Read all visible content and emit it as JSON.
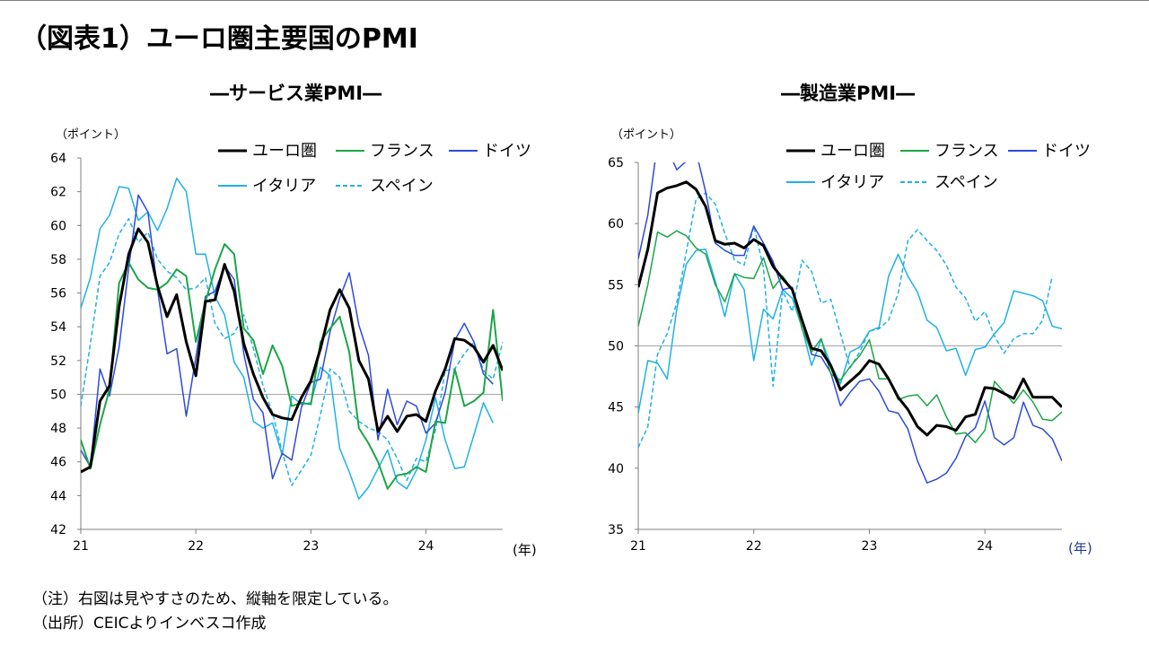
{
  "page_title": "（図表1）ユーロ圏主要国のPMI",
  "footnotes": [
    "（注）右図は見やすさのため、縦軸を限定している。",
    "（出所）CEICよりインベスコ作成"
  ],
  "colors": {
    "euro": "#000000",
    "france": "#1ca547",
    "germany": "#2d4ad9",
    "italy": "#1fb1e6",
    "spain": "#1fb1e6",
    "ref": "#a6a6a6",
    "axis": "#7f7f7f"
  },
  "chart_data": [
    {
      "type": "line",
      "title": "―サービス業PMI―",
      "ylabel": "（ポイント）",
      "xunit": "(年)",
      "ylim": [
        42,
        64
      ],
      "yticks": [
        "42",
        "44",
        "46",
        "48",
        "50",
        "52",
        "54",
        "56",
        "58",
        "60",
        "62",
        "64"
      ],
      "xtick_labels": [
        "21",
        "22",
        "23",
        "24"
      ],
      "xlim": [
        0,
        44
      ],
      "ref_line": 50,
      "grid": false,
      "legend_position": "top-right",
      "series": [
        {
          "key": "euro",
          "name": "ユーロ圏",
          "style": "solid",
          "width": 3,
          "values": [
            45.4,
            45.7,
            49.6,
            50.5,
            55.2,
            58.3,
            59.8,
            59.0,
            56.4,
            54.6,
            55.9,
            53.1,
            51.1,
            55.5,
            55.6,
            57.7,
            56.1,
            53.0,
            51.2,
            49.8,
            48.8,
            48.6,
            48.5,
            49.8,
            50.8,
            52.7,
            55.0,
            56.2,
            55.1,
            52.0,
            50.9,
            47.8,
            48.7,
            47.8,
            48.7,
            48.8,
            48.4,
            50.2,
            51.5,
            53.3,
            53.2,
            52.8,
            51.9,
            52.9,
            51.4
          ]
        },
        {
          "key": "france",
          "name": "フランス",
          "style": "solid",
          "width": 2,
          "values": [
            47.3,
            45.6,
            48.2,
            50.3,
            56.6,
            57.8,
            56.8,
            56.3,
            56.2,
            56.6,
            57.4,
            57.0,
            53.1,
            55.5,
            57.4,
            58.9,
            58.3,
            53.9,
            53.2,
            51.2,
            52.9,
            51.7,
            49.3,
            49.5,
            49.4,
            53.1,
            53.9,
            54.6,
            52.5,
            48.0,
            47.1,
            46.0,
            44.4,
            45.2,
            45.3,
            45.7,
            45.4,
            48.4,
            48.3,
            51.5,
            49.3,
            49.6,
            50.1,
            55.0,
            49.6
          ]
        },
        {
          "key": "germany",
          "name": "ドイツ",
          "style": "solid",
          "width": 1.5,
          "values": [
            46.7,
            45.7,
            51.5,
            49.9,
            52.8,
            57.5,
            61.8,
            60.8,
            56.2,
            52.4,
            52.7,
            48.7,
            52.2,
            55.8,
            56.1,
            57.6,
            56.8,
            52.4,
            49.7,
            48.9,
            45.0,
            46.5,
            46.1,
            49.2,
            50.7,
            50.9,
            53.7,
            55.7,
            57.2,
            54.1,
            52.3,
            47.3,
            50.3,
            48.2,
            49.6,
            49.3,
            47.7,
            48.3,
            50.1,
            53.2,
            54.2,
            53.1,
            51.2,
            50.6
          ]
        },
        {
          "key": "italy",
          "name": "イタリア",
          "style": "solid",
          "width": 1.5,
          "values": [
            55.1,
            56.9,
            59.8,
            60.6,
            62.3,
            62.2,
            60.3,
            60.8,
            59.7,
            61.0,
            62.8,
            62.0,
            58.3,
            58.3,
            55.8,
            54.7,
            51.9,
            51.0,
            48.4,
            48.0,
            48.3,
            46.4,
            49.9,
            49.4,
            49.5,
            51.6,
            51.1,
            46.8,
            45.4,
            43.8,
            44.5,
            45.6,
            46.7,
            44.8,
            44.4,
            45.5,
            47.3,
            49.8,
            47.3,
            45.6,
            45.7,
            47.6,
            49.5,
            48.3
          ]
        },
        {
          "key": "spain",
          "name": "スペイン",
          "style": "dashed",
          "width": 1.5,
          "values": [
            49.3,
            53.0,
            57.0,
            57.8,
            59.5,
            60.4,
            59.0,
            59.6,
            58.0,
            57.3,
            56.9,
            56.2,
            56.3,
            56.9,
            54.2,
            53.3,
            53.6,
            54.7,
            52.7,
            50.5,
            48.9,
            46.6,
            44.6,
            45.5,
            46.4,
            48.8,
            51.5,
            51.0,
            49.0,
            48.4,
            48.0,
            47.8,
            47.3,
            46.2,
            44.9,
            46.2,
            46.0,
            47.9,
            51.4,
            51.5,
            52.4,
            53.1,
            51.4,
            50.9,
            53.1
          ]
        }
      ]
    },
    {
      "type": "line",
      "title": "―製造業PMI―",
      "ylabel": "（ポイント）",
      "xunit": "(年)",
      "ylim": [
        35,
        65
      ],
      "yticks": [
        "35",
        "40",
        "45",
        "50",
        "55",
        "60",
        "65"
      ],
      "xtick_labels": [
        "21",
        "22",
        "23",
        "24"
      ],
      "xlim": [
        0,
        44
      ],
      "ref_line": 50,
      "grid": false,
      "legend_position": "top-right",
      "series": [
        {
          "key": "euro",
          "name": "ユーロ圏",
          "style": "solid",
          "width": 3,
          "values": [
            54.8,
            57.9,
            62.5,
            62.9,
            63.1,
            63.4,
            62.8,
            61.4,
            58.6,
            58.3,
            58.4,
            58.0,
            58.7,
            58.2,
            56.5,
            55.5,
            54.6,
            52.1,
            49.8,
            49.6,
            48.4,
            46.4,
            47.1,
            47.8,
            48.8,
            48.5,
            47.3,
            45.8,
            44.8,
            43.4,
            42.7,
            43.5,
            43.4,
            43.1,
            44.2,
            44.4,
            46.6,
            46.5,
            46.1,
            45.7,
            47.3,
            45.8,
            45.8,
            45.8,
            45.0
          ]
        },
        {
          "key": "france",
          "name": "フランス",
          "style": "solid",
          "width": 1.5,
          "values": [
            51.6,
            55.0,
            59.3,
            58.9,
            59.4,
            59.0,
            58.0,
            57.5,
            55.0,
            53.6,
            55.9,
            55.6,
            55.5,
            57.2,
            54.7,
            55.7,
            54.6,
            51.4,
            49.5,
            50.6,
            47.7,
            47.2,
            48.3,
            49.2,
            50.5,
            47.3,
            47.3,
            45.6,
            45.9,
            46.0,
            45.1,
            46.0,
            44.2,
            42.8,
            42.9,
            42.1,
            43.1,
            47.1,
            46.2,
            45.3,
            46.4,
            45.4,
            44.0,
            43.9,
            44.6
          ]
        },
        {
          "key": "germany",
          "name": "ドイツ",
          "style": "solid",
          "width": 1.5,
          "values": [
            57.1,
            60.7,
            66.6,
            66.2,
            64.4,
            65.1,
            65.9,
            62.6,
            58.4,
            57.8,
            57.4,
            57.4,
            59.8,
            58.4,
            56.9,
            54.6,
            54.8,
            52.0,
            49.3,
            49.1,
            47.8,
            45.1,
            46.2,
            47.1,
            47.3,
            46.3,
            44.7,
            44.5,
            43.2,
            40.6,
            38.8,
            39.1,
            39.6,
            40.8,
            42.6,
            43.3,
            45.5,
            42.5,
            41.9,
            42.5,
            45.4,
            43.5,
            43.2,
            42.4,
            40.6
          ]
        },
        {
          "key": "italy",
          "name": "イタリア",
          "style": "solid",
          "width": 1.5,
          "values": [
            44.5,
            48.8,
            48.6,
            47.3,
            53.0,
            56.7,
            57.8,
            57.9,
            55.3,
            52.4,
            55.9,
            54.6,
            48.8,
            53.0,
            52.2,
            54.6,
            53.9,
            51.5,
            48.4,
            50.5,
            48.5,
            46.9,
            49.5,
            49.9,
            51.2,
            51.5,
            55.7,
            57.5,
            55.7,
            54.4,
            52.1,
            51.5,
            49.6,
            49.8,
            47.6,
            49.7,
            49.9,
            51.0,
            51.9,
            54.5,
            54.3,
            54.1,
            53.7,
            51.6,
            51.4
          ]
        },
        {
          "key": "spain",
          "name": "スペイン",
          "style": "dashed",
          "width": 1.5,
          "values": [
            41.7,
            43.4,
            49.3,
            51.0,
            53.5,
            57.7,
            62.0,
            62.5,
            61.6,
            59.2,
            57.0,
            56.6,
            59.8,
            56.4,
            46.7,
            54.5,
            52.8,
            57.0,
            56.1,
            53.5,
            53.8,
            51.0,
            48.2,
            49.5,
            51.2,
            51.4,
            52.1,
            54.3,
            58.6,
            59.5,
            58.6,
            57.8,
            56.6,
            54.8,
            53.9,
            52.0,
            52.8,
            50.8,
            49.4,
            50.6,
            51.0,
            51.0,
            52.1,
            55.7
          ]
        }
      ]
    }
  ]
}
